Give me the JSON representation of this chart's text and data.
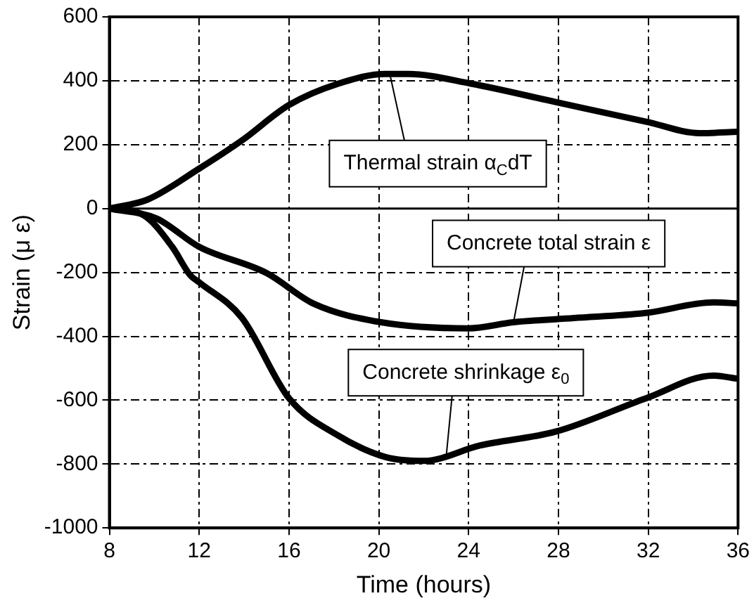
{
  "chart_data": {
    "type": "line",
    "xlabel": "Time (hours)",
    "ylabel": "Strain (μ ε)",
    "xlim": [
      8,
      36
    ],
    "xticks": [
      8,
      12,
      16,
      20,
      24,
      28,
      32,
      36
    ],
    "ylim": [
      -1000,
      600
    ],
    "yticks": [
      -1000,
      -800,
      -600,
      -400,
      -200,
      0,
      200,
      400,
      600
    ],
    "grid": true,
    "legend": false,
    "marker": "none",
    "line_style": "solid",
    "ref_lines": [
      {
        "axis": "y",
        "value": 0,
        "color": "#000000"
      }
    ],
    "series": [
      {
        "color": "#000000",
        "x": [
          8,
          9.7,
          12,
          13.9,
          16,
          18.2,
          20.3,
          21.3,
          24.1,
          27.9,
          31.9,
          34.3,
          36
        ],
        "values": [
          0,
          28,
          125,
          213,
          324,
          391,
          421,
          421,
          391,
          333,
          272,
          236,
          240
        ]
      },
      {
        "color": "#000000",
        "x": [
          8,
          10.1,
          12,
          15,
          17.1,
          20.1,
          24,
          26,
          28.7,
          31.9,
          34.9,
          36
        ],
        "values": [
          0,
          -31,
          -120,
          -202,
          -298,
          -356,
          -375,
          -356,
          -343,
          -327,
          -294,
          -297
        ]
      },
      {
        "color": "#000000",
        "x": [
          8,
          9.5,
          10.8,
          11.6,
          12,
          13.9,
          16,
          18.2,
          20.3,
          22,
          24.5,
          27.9,
          31.9,
          34.9,
          36
        ],
        "values": [
          0,
          -20,
          -120,
          -209,
          -231,
          -342,
          -594,
          -711,
          -778,
          -790,
          -742,
          -698,
          -594,
          -523,
          -533
        ]
      }
    ],
    "annotations": [
      {
        "text": "Thermal strain α$_{C}$dT",
        "x": 20.5,
        "y": 418
      },
      {
        "text": "Concrete total strain ε",
        "x": 26,
        "y": -356
      },
      {
        "text": "Concrete shrinkage ε$_{0}$",
        "x": 23,
        "y": -778
      }
    ]
  }
}
